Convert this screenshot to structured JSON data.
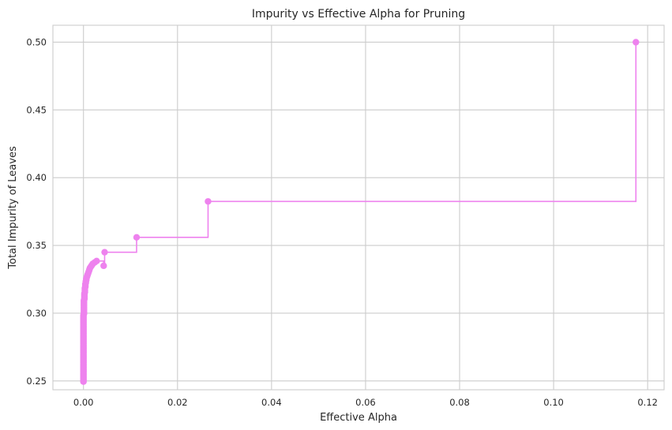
{
  "chart_data": {
    "type": "line",
    "style": "steps-post with point markers",
    "title": "Impurity vs Effective Alpha for Pruning",
    "xlabel": "Effective Alpha",
    "ylabel": "Total Impurity of Leaves",
    "xlim": [
      -0.0065,
      0.1235
    ],
    "ylim": [
      0.2435,
      0.5125
    ],
    "xticks": [
      0.0,
      0.02,
      0.04,
      0.06,
      0.08,
      0.1,
      0.12
    ],
    "xtick_labels": [
      "0.00",
      "0.02",
      "0.04",
      "0.06",
      "0.08",
      "0.10",
      "0.12"
    ],
    "yticks": [
      0.25,
      0.3,
      0.35,
      0.4,
      0.45,
      0.5
    ],
    "ytick_labels": [
      "0.25",
      "0.30",
      "0.35",
      "0.40",
      "0.45",
      "0.50"
    ],
    "grid": true,
    "legend": "none",
    "color": "#ee82ee",
    "series": [
      {
        "x": [
          0.0,
          0.0,
          0.0,
          0.0,
          0.0,
          0.0,
          0.0,
          0.0,
          0.0,
          0.0,
          0.0,
          0.0,
          0.0,
          0.0,
          0.0,
          0.0,
          0.0,
          0.0,
          0.0,
          0.0,
          0.0,
          0.0,
          0.0,
          0.0,
          0.0,
          0.0,
          0.0,
          0.0,
          0.0,
          0.0,
          0.0,
          0.0,
          0.0,
          0.0,
          0.0,
          0.0,
          0.0,
          0.0,
          0.0,
          0.0,
          0.0,
          0.0,
          0.0,
          0.0,
          0.0,
          0.0,
          0.0,
          0.0,
          0.0,
          0.0,
          0.0001,
          0.0001,
          0.0001,
          0.0001,
          0.0001,
          0.0001,
          0.0001,
          0.0001,
          0.0001,
          0.0001,
          0.0001,
          0.0002,
          0.0002,
          0.0002,
          0.0002,
          0.0002,
          0.0003,
          0.0003,
          0.0003,
          0.0003,
          0.0004,
          0.0004,
          0.0004,
          0.0005,
          0.0005,
          0.0006,
          0.0006,
          0.0007,
          0.0008,
          0.0009,
          0.001,
          0.0011,
          0.0012,
          0.0013,
          0.0014,
          0.0016,
          0.0018,
          0.002,
          0.0024,
          0.0028,
          0.0043,
          0.0045,
          0.0113,
          0.0265,
          0.1175
        ],
        "y": [
          0.2495,
          0.2505,
          0.2515,
          0.2525,
          0.2535,
          0.2545,
          0.2555,
          0.2565,
          0.2575,
          0.2585,
          0.2595,
          0.2605,
          0.2615,
          0.2625,
          0.2635,
          0.2645,
          0.2655,
          0.2665,
          0.2675,
          0.2685,
          0.2695,
          0.2705,
          0.2715,
          0.2725,
          0.2735,
          0.2745,
          0.2755,
          0.2765,
          0.2775,
          0.2785,
          0.2795,
          0.2805,
          0.2815,
          0.2825,
          0.2835,
          0.2845,
          0.2855,
          0.2865,
          0.2875,
          0.2885,
          0.2895,
          0.2905,
          0.2915,
          0.2925,
          0.2935,
          0.2945,
          0.2955,
          0.2965,
          0.2975,
          0.2985,
          0.2995,
          0.3005,
          0.3015,
          0.3025,
          0.3035,
          0.3045,
          0.3055,
          0.3065,
          0.3075,
          0.3085,
          0.3095,
          0.3105,
          0.3115,
          0.3125,
          0.3135,
          0.3145,
          0.3155,
          0.3165,
          0.3175,
          0.3185,
          0.3195,
          0.3205,
          0.3215,
          0.3225,
          0.3235,
          0.3245,
          0.3255,
          0.3265,
          0.3275,
          0.3285,
          0.3295,
          0.3305,
          0.3315,
          0.3325,
          0.3335,
          0.3345,
          0.3355,
          0.3365,
          0.3375,
          0.3385,
          0.335,
          0.345,
          0.356,
          0.3825,
          0.5
        ]
      }
    ]
  }
}
